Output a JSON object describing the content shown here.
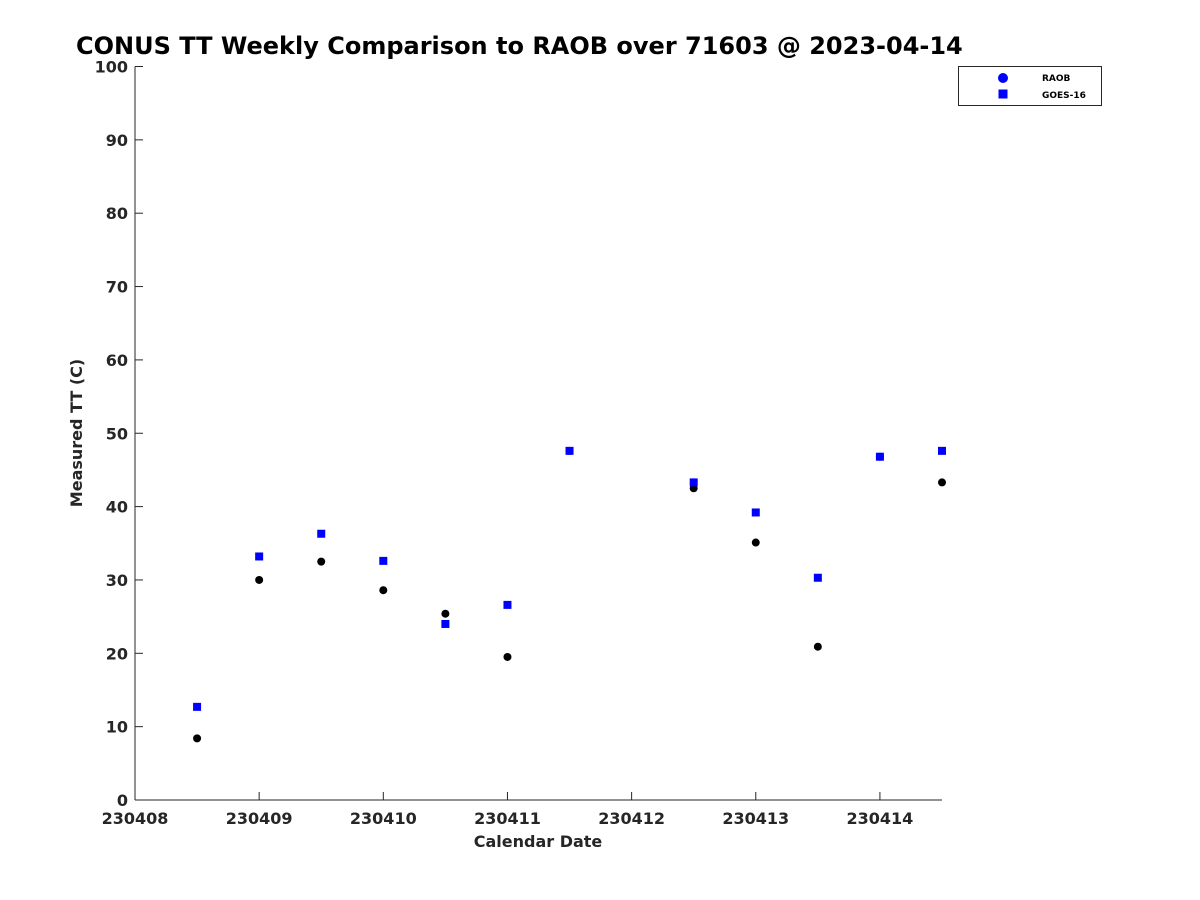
{
  "chart_data": {
    "type": "scatter",
    "title": "CONUS TT Weekly Comparison to RAOB over 71603 @ 2023-04-14",
    "xlabel": "Calendar Date",
    "ylabel": "Measured TT (C)",
    "xlim": [
      230408,
      230414.5
    ],
    "ylim": [
      0,
      100
    ],
    "xticks": [
      230408,
      230409,
      230410,
      230411,
      230412,
      230413,
      230414
    ],
    "xtick_labels": [
      "230408",
      "230409",
      "230410",
      "230411",
      "230412",
      "230413",
      "230414"
    ],
    "yticks": [
      0,
      10,
      20,
      30,
      40,
      50,
      60,
      70,
      80,
      90,
      100
    ],
    "ytick_labels": [
      "0",
      "10",
      "20",
      "30",
      "40",
      "50",
      "60",
      "70",
      "80",
      "90",
      "100"
    ],
    "grid": false,
    "legend_position": "top-right",
    "series": [
      {
        "name": "RAOB",
        "marker": "circle",
        "legend_color": "#0000ff",
        "point_color": "#000000",
        "x": [
          230408.5,
          230409,
          230409.5,
          230410,
          230410.5,
          230411,
          230411.5,
          230412.5,
          230413,
          230413.5,
          230414,
          230414.5
        ],
        "y": [
          8.4,
          30.0,
          32.5,
          28.6,
          25.4,
          19.5,
          47.6,
          42.5,
          35.1,
          20.9,
          46.8,
          43.3
        ]
      },
      {
        "name": "GOES-16",
        "marker": "square",
        "legend_color": "#0000ff",
        "point_color": "#0000ff",
        "x": [
          230408.5,
          230409,
          230409.5,
          230410,
          230410.5,
          230411,
          230411.5,
          230412.5,
          230413,
          230413.5,
          230414,
          230414.5
        ],
        "y": [
          12.7,
          33.2,
          36.3,
          32.6,
          24.0,
          26.6,
          47.6,
          43.3,
          39.2,
          30.3,
          46.8,
          47.6
        ]
      }
    ]
  }
}
